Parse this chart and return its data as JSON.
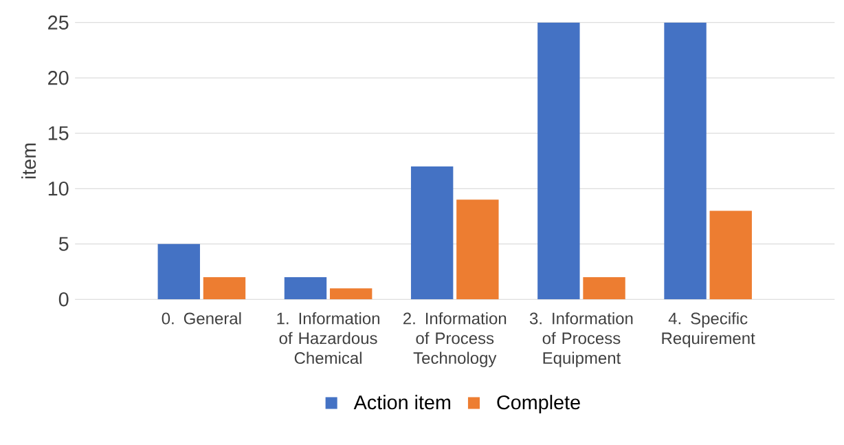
{
  "chart_data": {
    "type": "bar",
    "ylabel": "item",
    "categories": [
      "0. General",
      "1. Information of Hazardous Chemical",
      "2. Information of Process Technology",
      "3. Information of Process Equipment",
      "4. Specific Requirement"
    ],
    "series": [
      {
        "name": "Action item",
        "color": "#4472c4",
        "values": [
          5,
          2,
          12,
          25,
          25
        ]
      },
      {
        "name": "Complete",
        "color": "#ed7d31",
        "values": [
          2,
          1,
          9,
          2,
          8
        ]
      }
    ],
    "ylim": [
      0,
      25
    ],
    "yticks": [
      0,
      5,
      10,
      15,
      20,
      25
    ],
    "grid": "y",
    "legend": "bottom"
  }
}
